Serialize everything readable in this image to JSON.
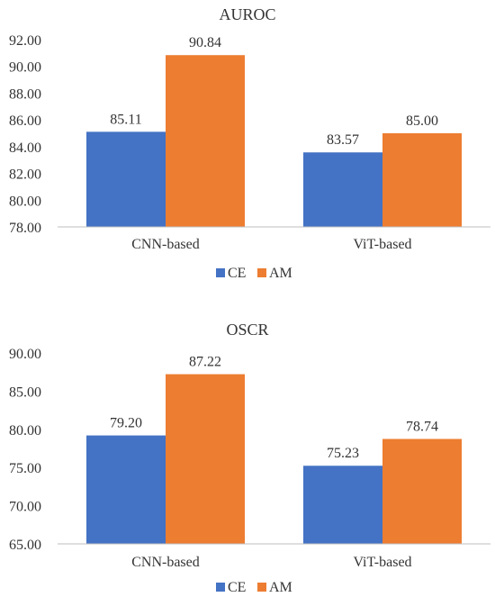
{
  "colors": {
    "ce": "#4472C4",
    "am": "#ED7D31",
    "axis": "#BFBFBF",
    "text": "#333333"
  },
  "chart_data": [
    {
      "type": "bar",
      "title": "AUROC",
      "categories": [
        "CNN-based",
        "ViT-based"
      ],
      "series": [
        {
          "name": "CE",
          "values": [
            85.11,
            83.57
          ]
        },
        {
          "name": "AM",
          "values": [
            90.84,
            85.0
          ]
        }
      ],
      "value_labels": [
        [
          "85.11",
          "83.57"
        ],
        [
          "90.84",
          "85.00"
        ]
      ],
      "ylim": [
        78,
        92
      ],
      "yticks": [
        "78.00",
        "80.00",
        "82.00",
        "84.00",
        "86.00",
        "88.00",
        "90.00",
        "92.00"
      ],
      "legend": [
        "CE",
        "AM"
      ],
      "legend_position": "bottom",
      "grid": false
    },
    {
      "type": "bar",
      "title": "OSCR",
      "categories": [
        "CNN-based",
        "ViT-based"
      ],
      "series": [
        {
          "name": "CE",
          "values": [
            79.2,
            75.23
          ]
        },
        {
          "name": "AM",
          "values": [
            87.22,
            78.74
          ]
        }
      ],
      "value_labels": [
        [
          "79.20",
          "75.23"
        ],
        [
          "87.22",
          "78.74"
        ]
      ],
      "ylim": [
        65,
        90
      ],
      "yticks": [
        "65.00",
        "70.00",
        "75.00",
        "80.00",
        "85.00",
        "90.00"
      ],
      "legend": [
        "CE",
        "AM"
      ],
      "legend_position": "bottom",
      "grid": false
    }
  ]
}
